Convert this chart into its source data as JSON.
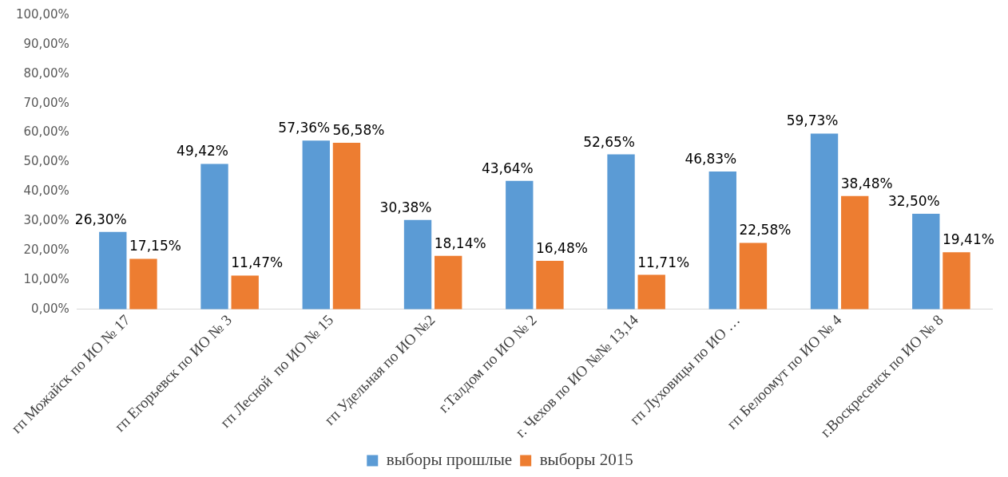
{
  "chart_data": {
    "type": "bar",
    "categories": [
      "гп Можайск по ИО № 17",
      "гп Егорьевск по ИО № 3",
      "гп Лесной  по ИО № 15",
      "гп Удельная по ИО №2",
      "г.Талдом по ИО № 2",
      "г. Чехов по ИО №№ 13,14",
      "гп Луховицы по ИО …",
      "гп Белоомут по ИО № 4",
      "г.Воскресенск по ИО № 8"
    ],
    "series": [
      {
        "name": "выборы прошлые",
        "color": "#5b9bd5",
        "values": [
          26.3,
          49.42,
          57.36,
          30.38,
          43.64,
          52.65,
          46.83,
          59.73,
          32.5
        ],
        "value_labels": [
          "26,30%",
          "49,42%",
          "57,36%",
          "30,38%",
          "43,64%",
          "52,65%",
          "46,83%",
          "59,73%",
          "32,50%"
        ]
      },
      {
        "name": "выборы 2015",
        "color": "#ed7d31",
        "values": [
          17.15,
          11.47,
          56.58,
          18.14,
          16.48,
          11.71,
          22.58,
          38.48,
          19.41
        ],
        "value_labels": [
          "17,15%",
          "11,47%",
          "56,58%",
          "18,14%",
          "16,48%",
          "11,71%",
          "22,58%",
          "38,48%",
          "19,41%"
        ]
      }
    ],
    "ylim": [
      0,
      100
    ],
    "yticks": [
      {
        "value": 0,
        "label": "0,00%"
      },
      {
        "value": 10,
        "label": "10,00%"
      },
      {
        "value": 20,
        "label": "20,00%"
      },
      {
        "value": 30,
        "label": "30,00%"
      },
      {
        "value": 40,
        "label": "40,00%"
      },
      {
        "value": 50,
        "label": "50,00%"
      },
      {
        "value": 60,
        "label": "60,00%"
      },
      {
        "value": 70,
        "label": "70,00%"
      },
      {
        "value": 80,
        "label": "80,00%"
      },
      {
        "value": 90,
        "label": "90,00%"
      },
      {
        "value": 100,
        "label": "100,00%"
      }
    ],
    "grid": false,
    "legend": "bottom"
  }
}
